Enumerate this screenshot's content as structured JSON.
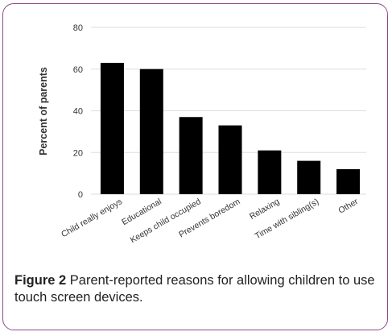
{
  "chart_data": {
    "type": "bar",
    "categories": [
      "Child really enjoys",
      "Educational",
      "Keeps child occupied",
      "Prevents boredom",
      "Relaxing",
      "Time with sibling(s)",
      "Other"
    ],
    "values": [
      63,
      60,
      37,
      33,
      21,
      16,
      12
    ],
    "title": "",
    "xlabel": "",
    "ylabel": "Percent of parents",
    "ylim": [
      0,
      80
    ],
    "yticks": [
      0,
      20,
      40,
      60,
      80
    ],
    "grid": true,
    "legend": "none",
    "bar_color": "#000000",
    "grid_color": "#dddddd"
  },
  "caption": {
    "label": "Figure 2",
    "text": " Parent-reported reasons for allowing children to use touch screen devices."
  },
  "colors": {
    "frame_border": "#8d4a8a"
  }
}
